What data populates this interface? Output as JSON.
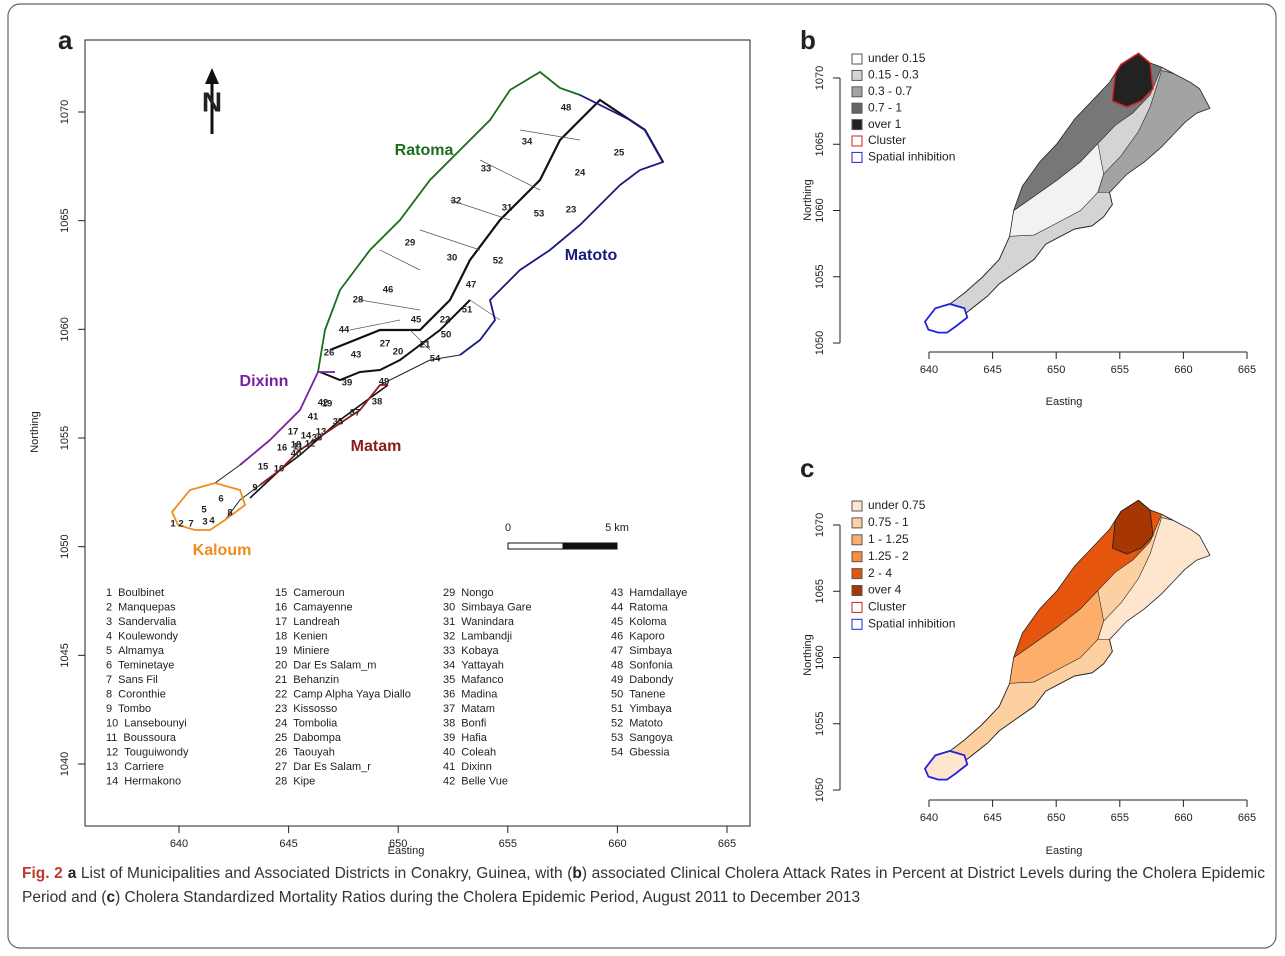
{
  "panels": {
    "a": {
      "label": "a",
      "xlabel": "Easting",
      "ylabel": "Northing",
      "xticks": [
        640,
        645,
        650,
        655,
        660,
        665
      ],
      "yticks": [
        1040,
        1045,
        1050,
        1055,
        1060,
        1065,
        1070
      ],
      "north_label": "N",
      "scale_bar": [
        "0",
        "5 km"
      ],
      "municipalities": [
        {
          "name": "Ratoma",
          "color": "#1b6e1b"
        },
        {
          "name": "Matoto",
          "color": "#1a1a80"
        },
        {
          "name": "Dixinn",
          "color": "#7a1fa2"
        },
        {
          "name": "Matam",
          "color": "#8b1a1a"
        },
        {
          "name": "Kaloum",
          "color": "#f08c1e"
        }
      ],
      "districts": [
        {
          "number": 1,
          "name": "Boulbinet"
        },
        {
          "number": 2,
          "name": "Manquepas"
        },
        {
          "number": 3,
          "name": "Sandervalia"
        },
        {
          "number": 4,
          "name": "Koulewondy"
        },
        {
          "number": 5,
          "name": "Almamya"
        },
        {
          "number": 6,
          "name": "Teminetaye"
        },
        {
          "number": 7,
          "name": "Sans Fil"
        },
        {
          "number": 8,
          "name": "Coronthie"
        },
        {
          "number": 9,
          "name": "Tombo"
        },
        {
          "number": 10,
          "name": "Lansebounyi"
        },
        {
          "number": 11,
          "name": "Boussoura"
        },
        {
          "number": 12,
          "name": "Touguiwondy"
        },
        {
          "number": 13,
          "name": "Carriere"
        },
        {
          "number": 14,
          "name": "Hermakono"
        },
        {
          "number": 15,
          "name": "Cameroun"
        },
        {
          "number": 16,
          "name": "Camayenne"
        },
        {
          "number": 17,
          "name": "Landreah"
        },
        {
          "number": 18,
          "name": "Kenien"
        },
        {
          "number": 19,
          "name": "Miniere"
        },
        {
          "number": 20,
          "name": "Dar Es Salam_m"
        },
        {
          "number": 21,
          "name": "Behanzin"
        },
        {
          "number": 22,
          "name": "Camp Alpha Yaya Diallo"
        },
        {
          "number": 23,
          "name": "Kissosso"
        },
        {
          "number": 24,
          "name": "Tombolia"
        },
        {
          "number": 25,
          "name": "Dabompa"
        },
        {
          "number": 26,
          "name": "Taouyah"
        },
        {
          "number": 27,
          "name": "Dar Es Salam_r"
        },
        {
          "number": 28,
          "name": "Kipe"
        },
        {
          "number": 29,
          "name": "Nongo"
        },
        {
          "number": 30,
          "name": "Simbaya Gare"
        },
        {
          "number": 31,
          "name": "Wanindara"
        },
        {
          "number": 32,
          "name": "Lambandji"
        },
        {
          "number": 33,
          "name": "Kobaya"
        },
        {
          "number": 34,
          "name": "Yattayah"
        },
        {
          "number": 35,
          "name": "Mafanco"
        },
        {
          "number": 36,
          "name": "Madina"
        },
        {
          "number": 37,
          "name": "Matam"
        },
        {
          "number": 38,
          "name": "Bonfi"
        },
        {
          "number": 39,
          "name": "Hafia"
        },
        {
          "number": 40,
          "name": "Coleah"
        },
        {
          "number": 41,
          "name": "Dixinn"
        },
        {
          "number": 42,
          "name": "Belle Vue"
        },
        {
          "number": 43,
          "name": "Hamdallaye"
        },
        {
          "number": 44,
          "name": "Ratoma"
        },
        {
          "number": 45,
          "name": "Koloma"
        },
        {
          "number": 46,
          "name": "Kaporo"
        },
        {
          "number": 47,
          "name": "Simbaya"
        },
        {
          "number": 48,
          "name": "Sonfonia"
        },
        {
          "number": 49,
          "name": "Dabondy"
        },
        {
          "number": 50,
          "name": "Tanene"
        },
        {
          "number": 51,
          "name": "Yimbaya"
        },
        {
          "number": 52,
          "name": "Matoto"
        },
        {
          "number": 53,
          "name": "Sangoya"
        },
        {
          "number": 54,
          "name": "Gbessia"
        }
      ]
    },
    "b": {
      "label": "b",
      "xlabel": "Easting",
      "ylabel": "Northing",
      "xticks": [
        640,
        645,
        650,
        655,
        660,
        665
      ],
      "yticks": [
        1050,
        1055,
        1060,
        1065,
        1070
      ],
      "legend": [
        {
          "label": "under 0.15",
          "fill": "#ffffff",
          "stroke": "#555555"
        },
        {
          "label": "0.15 - 0.3",
          "fill": "#d4d4d4",
          "stroke": "#555555"
        },
        {
          "label": "0.3 - 0.7",
          "fill": "#a3a3a3",
          "stroke": "#555555"
        },
        {
          "label": "0.7 - 1",
          "fill": "#666666",
          "stroke": "#555555"
        },
        {
          "label": "over 1",
          "fill": "#222222",
          "stroke": "#555555"
        },
        {
          "label": "Cluster",
          "fill": "#ffffff",
          "stroke": "#d62020"
        },
        {
          "label": "Spatial inhibition",
          "fill": "#ffffff",
          "stroke": "#2020e0"
        }
      ]
    },
    "c": {
      "label": "c",
      "xlabel": "Easting",
      "ylabel": "Northing",
      "xticks": [
        640,
        645,
        650,
        655,
        660,
        665
      ],
      "yticks": [
        1050,
        1055,
        1060,
        1065,
        1070
      ],
      "legend": [
        {
          "label": "under 0.75",
          "fill": "#fee6ce",
          "stroke": "#555555"
        },
        {
          "label": "0.75 - 1",
          "fill": "#fdd0a2",
          "stroke": "#555555"
        },
        {
          "label": "1 - 1.25",
          "fill": "#fdae6b",
          "stroke": "#555555"
        },
        {
          "label": "1.25 - 2",
          "fill": "#fd8d3c",
          "stroke": "#555555"
        },
        {
          "label": "2 - 4",
          "fill": "#e6550d",
          "stroke": "#555555"
        },
        {
          "label": "over 4",
          "fill": "#a63603",
          "stroke": "#555555"
        },
        {
          "label": "Cluster",
          "fill": "#ffffff",
          "stroke": "#d62020"
        },
        {
          "label": "Spatial inhibition",
          "fill": "#ffffff",
          "stroke": "#2020e0"
        }
      ]
    }
  },
  "caption": {
    "figure": "Fig. 2",
    "parts": [
      {
        "text": "a",
        "bold": true
      },
      {
        "text": " List of Municipalities and Associated Districts in Conakry, Guinea, with (",
        "bold": false
      },
      {
        "text": "b",
        "bold": true
      },
      {
        "text": ") associated Clinical Cholera Attack Rates in Percent at District Levels during the Cholera Epidemic Period and (",
        "bold": false
      },
      {
        "text": "c",
        "bold": true
      },
      {
        "text": ") Cholera Standardized Mortality Ratios during the Cholera Epidemic Period, August 2011 to December 2013",
        "bold": false
      }
    ]
  }
}
